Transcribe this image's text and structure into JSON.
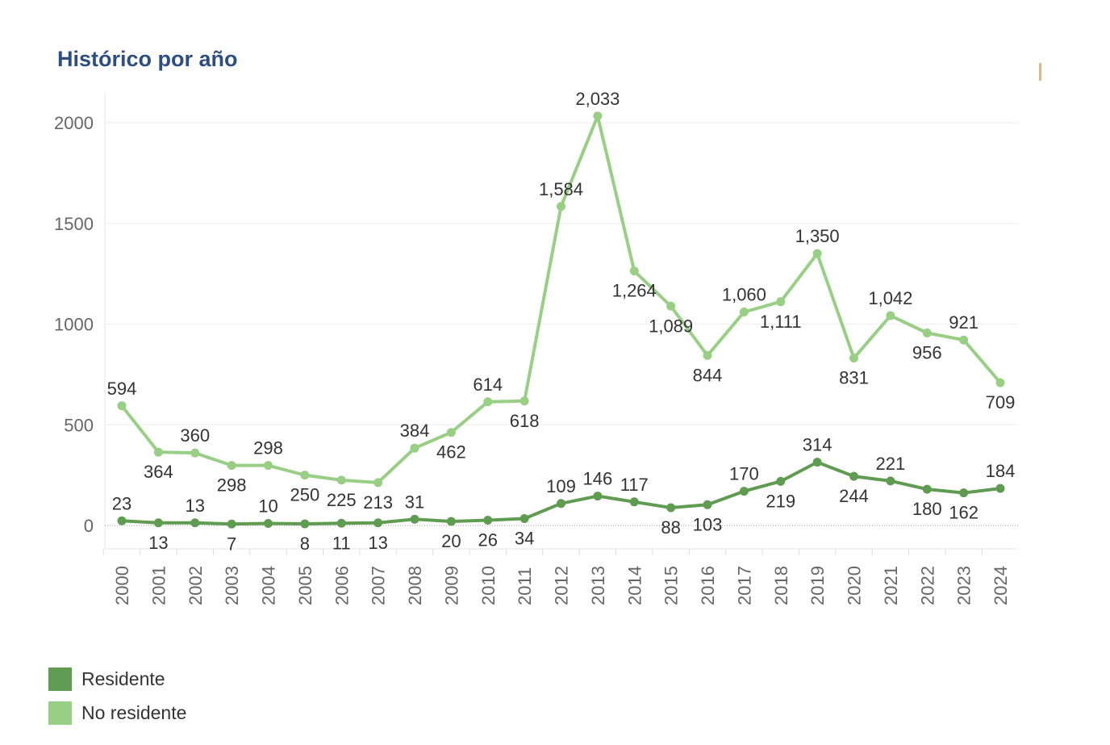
{
  "chart_data": {
    "type": "line",
    "title": "Histórico por año",
    "xlabel": "",
    "ylabel": "",
    "ylim": [
      0,
      2000
    ],
    "yticks": [
      0,
      500,
      1000,
      1500,
      2000
    ],
    "ytick_labels": [
      "0",
      "500",
      "1000",
      "1500",
      "2000"
    ],
    "grid": true,
    "legend_position": "bottom-left",
    "categories": [
      "2000",
      "2001",
      "2002",
      "2003",
      "2004",
      "2005",
      "2006",
      "2007",
      "2008",
      "2009",
      "2010",
      "2011",
      "2012",
      "2013",
      "2014",
      "2015",
      "2016",
      "2017",
      "2018",
      "2019",
      "2020",
      "2021",
      "2022",
      "2023",
      "2024"
    ],
    "series": [
      {
        "name": "Residente",
        "color": "#5f9c51",
        "values": [
          23,
          13,
          13,
          7,
          10,
          8,
          11,
          13,
          31,
          20,
          26,
          34,
          109,
          146,
          117,
          88,
          103,
          170,
          219,
          314,
          244,
          221,
          180,
          162,
          184
        ]
      },
      {
        "name": "No residente",
        "color": "#98cf84",
        "values": [
          594,
          364,
          360,
          298,
          298,
          250,
          225,
          213,
          384,
          462,
          614,
          618,
          1584,
          2033,
          1264,
          1089,
          844,
          1060,
          1111,
          1350,
          831,
          1042,
          956,
          921,
          709
        ]
      }
    ]
  }
}
